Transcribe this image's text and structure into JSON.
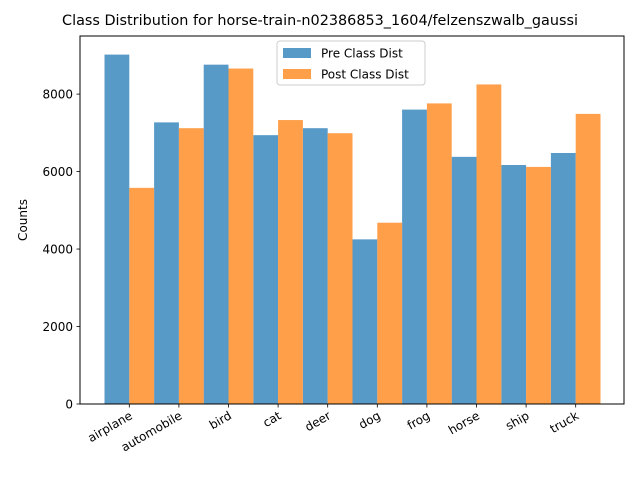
{
  "chart_data": {
    "type": "bar",
    "title": "Class Distribution for horse-train-n02386853_1604/felzenszwalb_gaussi",
    "xlabel": "",
    "ylabel": "Counts",
    "categories": [
      "airplane",
      "automobile",
      "bird",
      "cat",
      "deer",
      "dog",
      "frog",
      "horse",
      "ship",
      "truck"
    ],
    "series": [
      {
        "name": "Pre Class Dist",
        "color": "#1f77b4",
        "values": [
          9020,
          7270,
          8760,
          6940,
          7120,
          4250,
          7600,
          6380,
          6170,
          6480
        ]
      },
      {
        "name": "Post Class Dist",
        "color": "#ff7f0e",
        "values": [
          5580,
          7120,
          8660,
          7330,
          6990,
          4680,
          7760,
          8250,
          6120,
          7490
        ]
      }
    ],
    "ylim": [
      0,
      9500
    ],
    "yticks": [
      0,
      2000,
      4000,
      6000,
      8000
    ],
    "grid": false,
    "legend_position": "upper-center",
    "bar_opacity": 0.75
  }
}
